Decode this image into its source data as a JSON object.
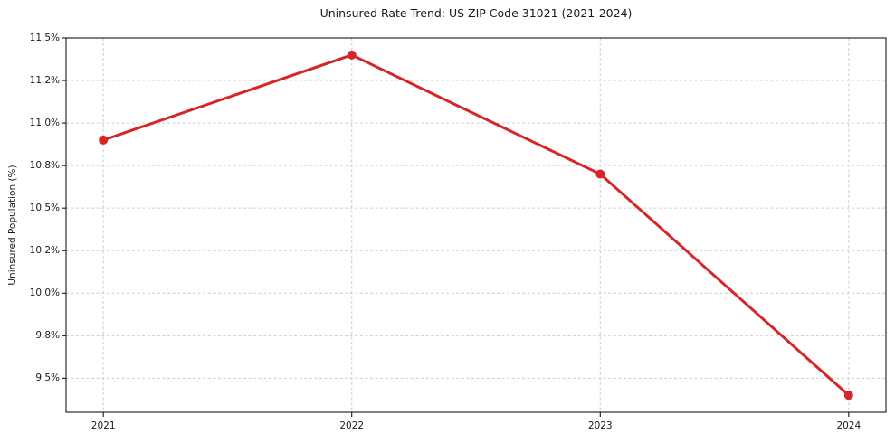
{
  "window": {
    "background": "#ffffff"
  },
  "chart_data": {
    "type": "line",
    "title": "Uninsured Rate Trend: US ZIP Code 31021 (2021-2024)",
    "xlabel": "",
    "ylabel": "Uninsured Population (%)",
    "x": [
      2021,
      2022,
      2023,
      2024
    ],
    "series": [
      {
        "values": [
          10.9,
          11.4,
          10.7,
          9.4
        ],
        "color": "#d62728",
        "marker": "circle",
        "line_width": 3,
        "marker_radius": 5
      }
    ],
    "xlim": [
      2020.85,
      2024.15
    ],
    "ylim": [
      9.3,
      11.5
    ],
    "xticks": {
      "values": [
        2021,
        2022,
        2023,
        2024
      ],
      "labels": [
        "2021",
        "2022",
        "2023",
        "2024"
      ]
    },
    "yticks": {
      "values": [
        9.5,
        9.75,
        10.0,
        10.25,
        10.5,
        10.75,
        11.0,
        11.25,
        11.5
      ],
      "labels": [
        "9.5%",
        "9.8%",
        "10.0%",
        "10.2%",
        "10.5%",
        "10.8%",
        "11.0%",
        "11.2%",
        "11.5%"
      ]
    },
    "grid": {
      "visible": true,
      "style": "dashed",
      "color": "#cccccc"
    },
    "legend": {
      "visible": false
    },
    "colors": {
      "line": "#d62728",
      "spine": "#000000",
      "tick": "#000000",
      "text": "#1a1a1a",
      "grid": "#cccccc",
      "background": "#ffffff"
    }
  }
}
